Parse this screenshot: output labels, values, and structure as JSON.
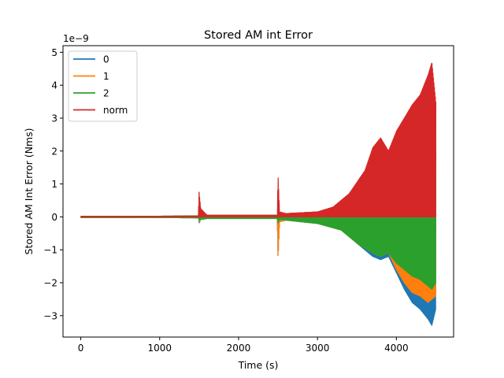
{
  "chart_data": {
    "type": "line",
    "title": "Stored AM int Error",
    "xlabel": "Time (s)",
    "ylabel": "Stored AM Int Error (Nms)",
    "y_offset_label": "1e−9",
    "xlim": [
      -225,
      4725
    ],
    "ylim": [
      -3.65,
      5.2
    ],
    "xticks": [
      0,
      1000,
      2000,
      3000,
      4000
    ],
    "xtick_labels": [
      "0",
      "1000",
      "2000",
      "3000",
      "4000"
    ],
    "yticks": [
      -3,
      -2,
      -1,
      0,
      1,
      2,
      3,
      4,
      5
    ],
    "ytick_labels": [
      "−3",
      "−2",
      "−1",
      "0",
      "1",
      "2",
      "3",
      "4",
      "5"
    ],
    "grid": false,
    "legend_position": "top-left",
    "units_note": "y values in units of 1e-9 Nms",
    "series": [
      {
        "name": "0",
        "color": "#1f77b4",
        "x": [
          0,
          1000,
          1490,
          1500,
          1520,
          1600,
          2000,
          2490,
          2500,
          2520,
          2600,
          3000,
          3300,
          3500,
          3700,
          3800,
          3900,
          4000,
          4100,
          4200,
          4300,
          4400,
          4450,
          4500
        ],
        "upper": [
          0.02,
          0.02,
          0.03,
          0.75,
          0.2,
          0.05,
          0.05,
          0.05,
          1.1,
          0.1,
          0.1,
          0.15,
          0.3,
          0.6,
          1.0,
          1.2,
          1.0,
          1.4,
          1.8,
          1.9,
          2.0,
          2.3,
          2.5,
          2.1
        ],
        "lower": [
          -0.02,
          -0.02,
          -0.03,
          -0.2,
          -0.08,
          -0.05,
          -0.05,
          -0.05,
          -1.3,
          -0.15,
          -0.1,
          -0.2,
          -0.4,
          -0.8,
          -1.2,
          -1.3,
          -1.2,
          -1.7,
          -2.2,
          -2.6,
          -2.8,
          -3.1,
          -3.3,
          -2.8
        ]
      },
      {
        "name": "1",
        "color": "#ff7f0e",
        "x": [
          0,
          1000,
          1490,
          1500,
          1520,
          1600,
          2000,
          2490,
          2500,
          2520,
          2600,
          3000,
          3300,
          3500,
          3700,
          3800,
          3900,
          4000,
          4100,
          4200,
          4300,
          4400,
          4450,
          4500
        ],
        "upper": [
          0.02,
          0.02,
          0.03,
          0.7,
          0.2,
          0.05,
          0.05,
          0.05,
          1.2,
          0.1,
          0.1,
          0.15,
          0.35,
          0.7,
          1.1,
          1.3,
          1.1,
          1.6,
          2.0,
          2.1,
          2.2,
          2.5,
          2.6,
          2.3
        ],
        "lower": [
          -0.02,
          -0.02,
          -0.03,
          -0.15,
          -0.08,
          -0.05,
          -0.05,
          -0.05,
          -1.3,
          -0.15,
          -0.1,
          -0.2,
          -0.4,
          -0.8,
          -1.1,
          -1.2,
          -1.1,
          -1.6,
          -2.0,
          -2.3,
          -2.4,
          -2.6,
          -2.5,
          -2.4
        ]
      },
      {
        "name": "2",
        "color": "#2ca02c",
        "x": [
          0,
          1000,
          1490,
          1500,
          1520,
          1600,
          2000,
          2490,
          2500,
          2520,
          2600,
          3000,
          3300,
          3500,
          3700,
          3800,
          3900,
          4000,
          4100,
          4200,
          4300,
          4400,
          4450,
          4500
        ],
        "upper": [
          0.02,
          0.02,
          0.03,
          0.1,
          0.08,
          0.05,
          0.05,
          0.05,
          0.15,
          0.08,
          0.1,
          0.15,
          0.35,
          0.7,
          1.1,
          1.3,
          1.1,
          1.4,
          1.6,
          1.6,
          1.7,
          2.0,
          2.1,
          1.9
        ],
        "lower": [
          -0.02,
          -0.02,
          -0.03,
          -0.1,
          -0.08,
          -0.05,
          -0.05,
          -0.05,
          -0.2,
          -0.08,
          -0.1,
          -0.2,
          -0.4,
          -0.8,
          -1.1,
          -1.2,
          -1.1,
          -1.4,
          -1.6,
          -1.8,
          -1.9,
          -2.1,
          -2.2,
          -2.0
        ]
      },
      {
        "name": "norm",
        "color": "#d62728",
        "x": [
          0,
          1000,
          1490,
          1500,
          1520,
          1600,
          2000,
          2490,
          2500,
          2520,
          2600,
          3000,
          3200,
          3400,
          3600,
          3700,
          3800,
          3900,
          4000,
          4100,
          4200,
          4300,
          4400,
          4450,
          4500
        ],
        "upper": [
          0.02,
          0.02,
          0.03,
          0.75,
          0.25,
          0.05,
          0.05,
          0.05,
          1.3,
          0.15,
          0.1,
          0.15,
          0.3,
          0.7,
          1.4,
          2.1,
          2.4,
          2.0,
          2.6,
          3.0,
          3.4,
          3.7,
          4.3,
          4.7,
          3.5
        ],
        "lower": [
          0,
          0,
          0,
          0,
          0,
          0,
          0,
          0,
          0,
          0,
          0,
          0,
          0,
          0,
          0,
          0,
          0,
          0,
          0,
          0,
          0,
          0,
          0,
          0,
          0
        ]
      }
    ]
  }
}
